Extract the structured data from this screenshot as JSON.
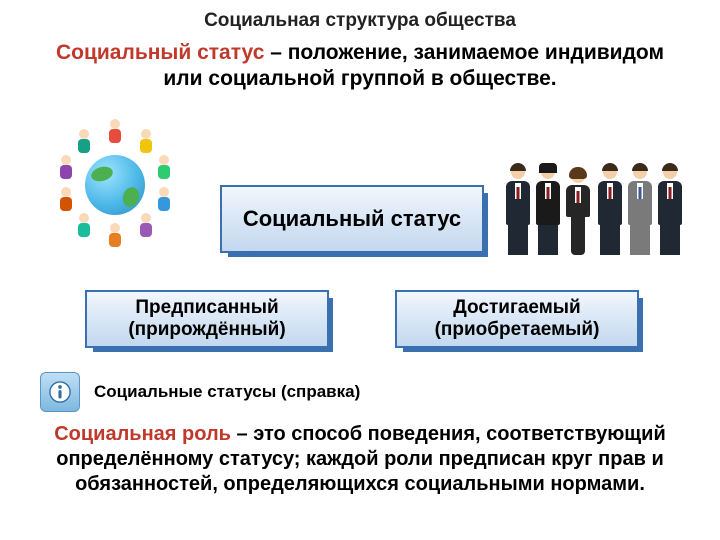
{
  "header": {
    "title": "Социальная структура общества"
  },
  "intro": {
    "term": "Социальный статус",
    "rest": " – положение, занимаемое индивидом или социальной группой в обществе."
  },
  "boxes": {
    "main": "Социальный статус",
    "left_line1": "Предписанный",
    "left_line2": "(прирождённый)",
    "right_line1": "Достигаемый",
    "right_line2": "(приобретаемый)"
  },
  "info": {
    "label": "Социальные статусы (справка)"
  },
  "conclusion": {
    "term": "Социальная роль",
    "rest": " – это способ поведения, соответствующий определённому статусу; каждой роли предписан круг прав и обязанностей, определяющихся социальными нормами."
  },
  "style": {
    "term_color": "#C0392B",
    "box_border": "#3a6fb0",
    "box_grad_top": "#f2f7fd",
    "box_grad_bot": "#c3d8ef",
    "info_icon_bg_top": "#bfe0f5",
    "info_icon_bg_bot": "#7fb8de",
    "background": "#ffffff",
    "title_fontsize": 19,
    "intro_fontsize": 21,
    "box_main_fontsize": 22,
    "box_sub_fontsize": 19,
    "info_fontsize": 17,
    "conclusion_fontsize": 20
  },
  "illustration_left": {
    "type": "children-around-globe",
    "kid_colors": [
      "#e74c3c",
      "#f1c40f",
      "#2ecc71",
      "#3498db",
      "#9b59b6",
      "#e67e22",
      "#1abc9c",
      "#d35400",
      "#8e44ad",
      "#16a085"
    ]
  },
  "illustration_right": {
    "type": "professionals-lineup",
    "count": 6
  }
}
